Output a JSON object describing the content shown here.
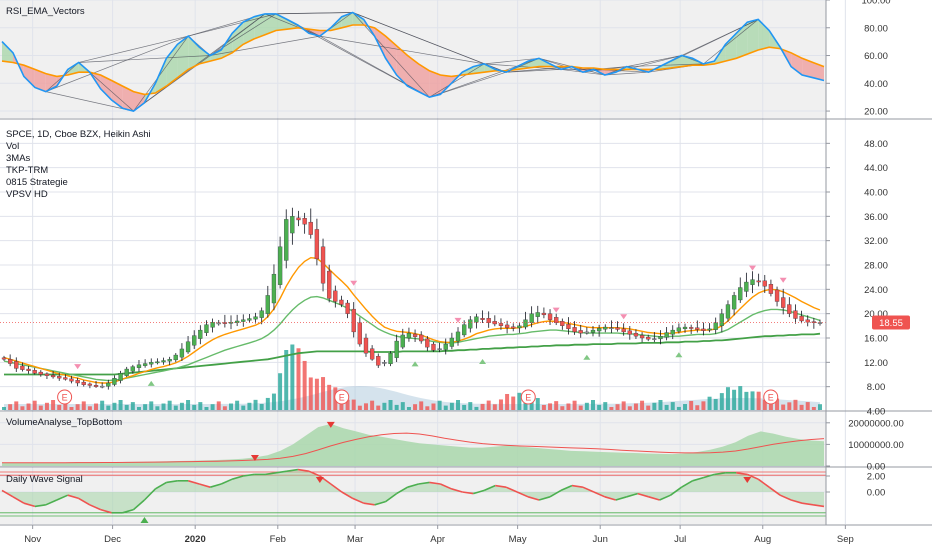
{
  "chart_data": [
    {
      "type": "line",
      "pane": "RSI_EMA_Vectors",
      "title": "RSI_EMA_Vectors",
      "ylim": [
        15,
        100
      ],
      "y_ticks": [
        "100.00",
        "80.00",
        "60.00",
        "40.00",
        "20.00"
      ],
      "y_tick_values": [
        100,
        80,
        60,
        40,
        20
      ],
      "grid": true,
      "colors": {
        "rsi": "#2196f3",
        "ema": "#ff9800",
        "up_fill": "#a5d6a7",
        "down_fill": "#ef9a9a",
        "vectors": "#434651",
        "background": "#f0f0f0"
      },
      "series": [
        {
          "key": "rsi",
          "values": [
            70,
            62,
            45,
            37,
            34,
            38,
            50,
            55,
            48,
            36,
            28,
            22,
            20,
            26,
            40,
            58,
            68,
            74,
            66,
            60,
            64,
            76,
            84,
            88,
            90,
            90,
            86,
            82,
            76,
            74,
            80,
            88,
            91,
            86,
            74,
            58,
            46,
            38,
            34,
            30,
            32,
            40,
            48,
            52,
            54,
            50,
            48,
            52,
            56,
            58,
            54,
            50,
            52,
            48,
            50,
            46,
            48,
            52,
            50,
            48,
            52,
            56,
            60,
            58,
            54,
            56,
            68,
            76,
            84,
            86,
            78,
            66,
            52,
            46,
            44,
            42
          ]
        },
        {
          "key": "ema",
          "values": [
            56,
            55,
            53,
            50,
            47,
            45,
            46,
            48,
            48,
            46,
            42,
            38,
            34,
            32,
            33,
            38,
            44,
            50,
            54,
            56,
            58,
            62,
            68,
            72,
            75,
            78,
            79,
            80,
            79,
            78,
            78,
            80,
            82,
            82,
            80,
            74,
            67,
            60,
            54,
            49,
            46,
            45,
            46,
            47,
            48,
            49,
            49,
            50,
            51,
            52,
            52,
            52,
            52,
            51,
            51,
            50,
            50,
            50,
            50,
            50,
            50,
            51,
            52,
            53,
            53,
            54,
            56,
            58,
            61,
            64,
            66,
            65,
            62,
            58,
            55,
            52
          ]
        }
      ]
    },
    {
      "type": "candlestick",
      "pane": "main",
      "legend": [
        "SPCE, 1D, Cboe BZX, Heikin Ashi",
        "Vol",
        "3MAs",
        "TKP-TRM",
        "0815 Strategie",
        "VPSV HD"
      ],
      "ylim": [
        4,
        52
      ],
      "y_ticks": [
        "48.00",
        "44.00",
        "40.00",
        "36.00",
        "32.00",
        "28.00",
        "24.00",
        "20.00",
        "16.00",
        "12.00",
        "8.00",
        "4.00"
      ],
      "y_tick_values": [
        48,
        44,
        40,
        36,
        32,
        28,
        24,
        20,
        16,
        12,
        8,
        4
      ],
      "last_price": "18.55",
      "last_price_value": 18.55,
      "earnings_markers": [
        "E",
        "E",
        "E",
        "E"
      ],
      "earnings_dates": [
        "2019-11-13",
        "2020-02-25",
        "2020-05-05",
        "2020-08-04"
      ],
      "colors": {
        "up": "#4caf50",
        "down": "#ef5350",
        "neutral": "#9e9e9e",
        "ma_fast": "#ff9800",
        "ma_mid": "#66bb6a",
        "ma_slow": "#43a047",
        "last_price_bg": "#ef5350"
      },
      "close": [
        12.5,
        11.8,
        11.0,
        10.8,
        10.6,
        10.2,
        10.0,
        9.8,
        9.6,
        9.4,
        9.2,
        8.9,
        8.6,
        8.3,
        8.2,
        8.0,
        8.1,
        8.6,
        9.4,
        10.2,
        10.9,
        11.3,
        11.6,
        11.8,
        12.0,
        12.1,
        12.3,
        12.5,
        13.2,
        14.2,
        15.4,
        16.4,
        17.3,
        18.2,
        18.6,
        18.5,
        18.4,
        18.6,
        18.8,
        19.0,
        19.2,
        19.5,
        20.5,
        23.0,
        26.5,
        31.0,
        35.5,
        36.0,
        35.4,
        34.7,
        33.0,
        29.0,
        25.0,
        22.5,
        22.0,
        21.5,
        20.0,
        17.0,
        15.0,
        13.5,
        12.5,
        11.5,
        12.0,
        13.5,
        15.5,
        16.5,
        16.8,
        16.2,
        15.5,
        14.5,
        14.0,
        14.2,
        15.0,
        16.0,
        17.0,
        18.2,
        19.0,
        19.5,
        19.0,
        18.5,
        18.3,
        18.0,
        17.7,
        17.6,
        18.0,
        19.0,
        20.0,
        20.2,
        19.8,
        19.0,
        18.5,
        18.0,
        17.5,
        17.0,
        16.8,
        17.0,
        17.3,
        17.6,
        17.8,
        17.6,
        17.4,
        17.0,
        16.6,
        16.3,
        16.0,
        15.8,
        15.9,
        16.3,
        16.9,
        17.3,
        17.7,
        17.8,
        17.6,
        17.4,
        17.2,
        17.5,
        18.5,
        20.0,
        21.5,
        23.0,
        24.3,
        25.2,
        25.6,
        25.2,
        24.5,
        23.3,
        22.0,
        21.0,
        20.0,
        19.2,
        18.8,
        18.6,
        18.5,
        18.55
      ],
      "ma_fast": [
        12.8,
        12.5,
        12.2,
        11.9,
        11.6,
        11.3,
        11.0,
        10.7,
        10.4,
        10.1,
        9.9,
        9.6,
        9.4,
        9.1,
        8.9,
        8.7,
        8.6,
        8.6,
        8.8,
        9.1,
        9.5,
        9.8,
        10.2,
        10.5,
        10.8,
        11.1,
        11.3,
        11.6,
        11.9,
        12.4,
        13.0,
        13.7,
        14.4,
        15.1,
        15.7,
        16.2,
        16.6,
        16.9,
        17.2,
        17.5,
        17.8,
        18.1,
        18.6,
        19.5,
        20.8,
        22.5,
        24.5,
        26.2,
        27.6,
        28.6,
        29.2,
        29.1,
        28.3,
        27.3,
        26.3,
        25.4,
        24.4,
        23.1,
        21.9,
        20.7,
        19.6,
        18.6,
        17.8,
        17.4,
        17.1,
        17.0,
        16.9,
        16.7,
        16.5,
        16.1,
        15.7,
        15.4,
        15.3,
        15.3,
        15.5,
        15.8,
        16.2,
        16.7,
        17.0,
        17.3,
        17.5,
        17.6,
        17.6,
        17.6,
        17.7,
        17.9,
        18.2,
        18.5,
        18.7,
        18.8,
        18.7,
        18.6,
        18.4,
        18.2,
        18.0,
        17.8,
        17.7,
        17.7,
        17.7,
        17.7,
        17.7,
        17.6,
        17.5,
        17.3,
        17.1,
        16.9,
        16.8,
        16.7,
        16.7,
        16.8,
        16.9,
        17.1,
        17.2,
        17.3,
        17.3,
        17.3,
        17.5,
        18.0,
        18.8,
        19.8,
        20.8,
        21.8,
        22.7,
        23.4,
        23.8,
        24.0,
        23.9,
        23.6,
        23.1,
        22.6,
        22.0,
        21.5,
        21.0,
        20.6
      ],
      "ma_mid": [
        12.2,
        12.0,
        11.8,
        11.6,
        11.4,
        11.2,
        11.0,
        10.8,
        10.6,
        10.4,
        10.2,
        10.0,
        9.8,
        9.6,
        9.4,
        9.2,
        9.1,
        9.0,
        9.1,
        9.2,
        9.4,
        9.6,
        9.8,
        10.0,
        10.2,
        10.4,
        10.6,
        10.8,
        11.0,
        11.3,
        11.6,
        12.0,
        12.4,
        12.8,
        13.2,
        13.6,
        14.0,
        14.3,
        14.6,
        14.9,
        15.2,
        15.5,
        15.9,
        16.5,
        17.3,
        18.3,
        19.5,
        20.6,
        21.5,
        22.2,
        22.7,
        22.8,
        22.6,
        22.2,
        21.8,
        21.4,
        20.9,
        20.3,
        19.6,
        18.9,
        18.2,
        17.5,
        17.0,
        16.6,
        16.3,
        16.1,
        16.0,
        15.9,
        15.8,
        15.6,
        15.4,
        15.3,
        15.2,
        15.2,
        15.3,
        15.5,
        15.7,
        15.9,
        16.1,
        16.3,
        16.4,
        16.5,
        16.6,
        16.6,
        16.7,
        16.8,
        17.0,
        17.1,
        17.2,
        17.3,
        17.3,
        17.2,
        17.1,
        17.0,
        16.9,
        16.8,
        16.8,
        16.8,
        16.8,
        16.8,
        16.8,
        16.7,
        16.7,
        16.6,
        16.5,
        16.4,
        16.3,
        16.2,
        16.2,
        16.3,
        16.3,
        16.4,
        16.5,
        16.6,
        16.6,
        16.6,
        16.7,
        17.0,
        17.4,
        18.0,
        18.6,
        19.2,
        19.8,
        20.2,
        20.5,
        20.7,
        20.7,
        20.6,
        20.4,
        20.1,
        19.8,
        19.5,
        19.2,
        18.9
      ],
      "ma_slow": [
        10.0,
        10.0,
        10.0,
        10.0,
        10.0,
        10.0,
        10.0,
        10.0,
        10.0,
        10.0,
        10.0,
        10.0,
        10.0,
        10.0,
        10.0,
        10.0,
        10.0,
        10.0,
        10.0,
        10.1,
        10.2,
        10.3,
        10.4,
        10.5,
        10.6,
        10.7,
        10.8,
        10.9,
        11.0,
        11.1,
        11.2,
        11.3,
        11.4,
        11.5,
        11.6,
        11.7,
        11.8,
        11.9,
        12.0,
        12.1,
        12.2,
        12.3,
        12.4,
        12.5,
        12.7,
        12.9,
        13.1,
        13.3,
        13.5,
        13.6,
        13.7,
        13.8,
        13.8,
        13.8,
        13.8,
        13.8,
        13.8,
        13.8,
        13.8,
        13.8,
        13.7,
        13.7,
        13.7,
        13.7,
        13.7,
        13.8,
        13.8,
        13.8,
        13.8,
        13.8,
        13.8,
        13.8,
        13.9,
        13.9,
        14.0,
        14.0,
        14.1,
        14.1,
        14.2,
        14.2,
        14.3,
        14.3,
        14.4,
        14.4,
        14.5,
        14.5,
        14.6,
        14.6,
        14.7,
        14.7,
        14.8,
        14.8,
        14.8,
        14.9,
        14.9,
        14.9,
        15.0,
        15.0,
        15.0,
        15.0,
        15.1,
        15.1,
        15.1,
        15.1,
        15.2,
        15.2,
        15.2,
        15.2,
        15.3,
        15.3,
        15.3,
        15.4,
        15.4,
        15.4,
        15.5,
        15.5,
        15.6,
        15.6,
        15.7,
        15.8,
        15.9,
        16.0,
        16.1,
        16.2,
        16.3,
        16.3,
        16.4,
        16.4,
        16.5,
        16.5,
        16.6,
        16.6,
        16.6,
        16.7,
        16.7,
        16.7
      ]
    },
    {
      "type": "area",
      "pane": "VolumeAnalyse_TopBottom",
      "title": "VolumeAnalyse_TopBottom",
      "ylim": [
        0,
        25000000
      ],
      "y_ticks": [
        "20000000.00",
        "10000000.00",
        "0.00"
      ],
      "y_tick_values": [
        20000000,
        10000000,
        0
      ],
      "colors": {
        "fill": "#a5d6a7",
        "line": "#ef5350",
        "up_marker": "#e53935"
      },
      "values": [
        1500000,
        1500000,
        1500000,
        1500000,
        1600000,
        1600000,
        1700000,
        1700000,
        1800000,
        1800000,
        1900000,
        2000000,
        2100000,
        2200000,
        2300000,
        2400000,
        2600000,
        2800000,
        3000000,
        3400000,
        4000000,
        5000000,
        7000000,
        10000000,
        14000000,
        18000000,
        19500000,
        17500000,
        16000000,
        14500000,
        13500000,
        12500000,
        11500000,
        10500000,
        10000000,
        9500000,
        9000000,
        8500000,
        8500000,
        9000000,
        9500000,
        9000000,
        8500000,
        8000000,
        7500000,
        7000000,
        6800000,
        6600000,
        6400000,
        6200000,
        6000000,
        5800000,
        5600000,
        5500000,
        5800000,
        6500000,
        7500000,
        9000000,
        11000000,
        14000000,
        16000000,
        15000000,
        13500000,
        12500000,
        11800000,
        11500000
      ]
    },
    {
      "type": "line",
      "pane": "Daily Wave Signal",
      "title": "Daily Wave Signal",
      "ylim": [
        -4,
        3
      ],
      "y_ticks": [
        "2.00",
        "0.00"
      ],
      "y_tick_values": [
        2,
        0
      ],
      "colors": {
        "up": "#4caf50",
        "down": "#ef5350",
        "fill": "#a5d6a7",
        "upper_line": "#ef5350",
        "lower_line": "#4caf50"
      },
      "series": [
        {
          "key": "wave",
          "values": [
            0.2,
            -0.6,
            -1.4,
            -1.8,
            -1.6,
            -1.0,
            -0.4,
            -0.8,
            -1.6,
            -2.2,
            -2.6,
            -2.6,
            -2.2,
            -1.0,
            0.4,
            1.2,
            1.4,
            1.4,
            1.0,
            0.6,
            1.0,
            1.6,
            2.0,
            2.2,
            2.2,
            2.4,
            2.6,
            2.8,
            2.6,
            2.0,
            1.0,
            0.0,
            -0.8,
            -1.4,
            -1.6,
            -1.2,
            -0.2,
            0.6,
            1.0,
            1.2,
            1.0,
            0.4,
            0.0,
            -0.2,
            0.2,
            0.8,
            0.6,
            0.0,
            -0.6,
            -1.0,
            -0.6,
            0.2,
            0.8,
            0.6,
            0.0,
            -0.6,
            -1.0,
            -0.6,
            -0.2,
            -0.6,
            -1.0,
            -0.4,
            0.6,
            1.4,
            1.8,
            2.2,
            2.4,
            2.4,
            2.2,
            1.6,
            0.6,
            -0.4,
            -1.0,
            -1.4,
            -1.6,
            -1.8
          ]
        }
      ]
    }
  ],
  "time_axis": {
    "labels": [
      "Nov",
      "Dec",
      "2020",
      "Feb",
      "Mar",
      "Apr",
      "May",
      "Jun",
      "Jul",
      "Aug",
      "Sep"
    ],
    "dates": [
      "2019-11-01",
      "2019-12-01",
      "2020-01-01",
      "2020-02-01",
      "2020-03-01",
      "2020-04-01",
      "2020-05-01",
      "2020-06-01",
      "2020-07-01",
      "2020-08-01",
      "2020-09-01"
    ]
  }
}
